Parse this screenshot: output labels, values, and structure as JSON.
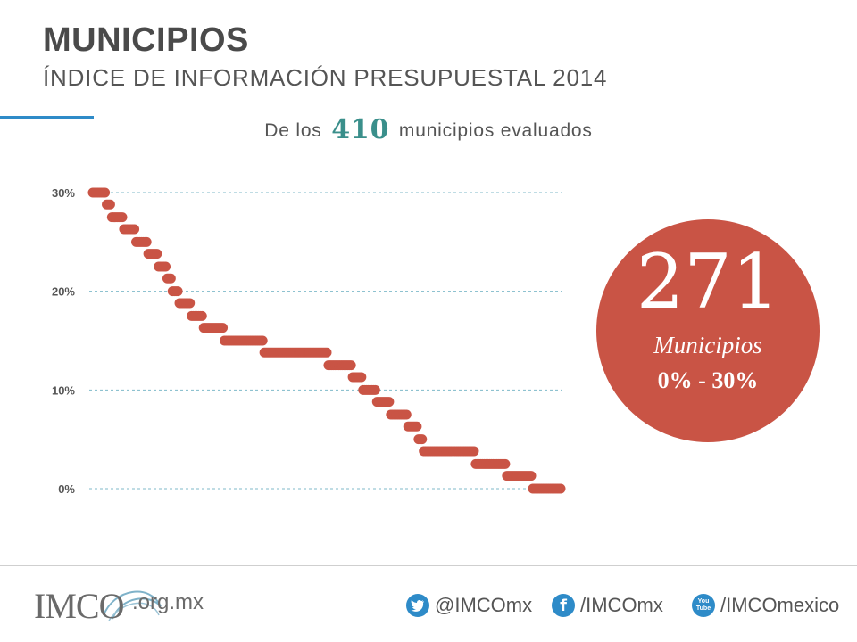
{
  "header": {
    "title": "MUNICIPIOS",
    "subtitle": "ÍNDICE DE INFORMACIÓN PRESUPUESTAL 2014"
  },
  "headline": {
    "prefix": "De los",
    "number": "410",
    "suffix": "municipios evaluados"
  },
  "highlight": {
    "number": "271",
    "label": "Municipios",
    "range": "0% - 30%"
  },
  "colors": {
    "accent_blue": "#2e8bc8",
    "dot_red": "#c95445",
    "circle_red": "#c95445",
    "teal": "#3a8f8b",
    "grid": "#7fb9c9"
  },
  "chart_data": {
    "type": "scatter",
    "title": "",
    "xlabel": "",
    "ylabel": "",
    "ylim": [
      0,
      30
    ],
    "y_ticks": [
      "0%",
      "10%",
      "20%",
      "30%"
    ],
    "grid": true,
    "n_points": 271,
    "series": [
      {
        "values_by_rank_segments": [
          {
            "from": 1,
            "to": 8,
            "value": 30.0
          },
          {
            "from": 9,
            "to": 11,
            "value": 28.8
          },
          {
            "from": 12,
            "to": 18,
            "value": 27.5
          },
          {
            "from": 19,
            "to": 25,
            "value": 26.3
          },
          {
            "from": 26,
            "to": 32,
            "value": 25.0
          },
          {
            "from": 33,
            "to": 38,
            "value": 23.8
          },
          {
            "from": 39,
            "to": 43,
            "value": 22.5
          },
          {
            "from": 44,
            "to": 46,
            "value": 21.3
          },
          {
            "from": 47,
            "to": 50,
            "value": 20.0
          },
          {
            "from": 51,
            "to": 57,
            "value": 18.8
          },
          {
            "from": 58,
            "to": 64,
            "value": 17.5
          },
          {
            "from": 65,
            "to": 76,
            "value": 16.3
          },
          {
            "from": 77,
            "to": 99,
            "value": 15.0
          },
          {
            "from": 100,
            "to": 136,
            "value": 13.8
          },
          {
            "from": 137,
            "to": 150,
            "value": 12.5
          },
          {
            "from": 151,
            "to": 156,
            "value": 11.3
          },
          {
            "from": 157,
            "to": 164,
            "value": 10.0
          },
          {
            "from": 165,
            "to": 172,
            "value": 8.8
          },
          {
            "from": 173,
            "to": 182,
            "value": 7.5
          },
          {
            "from": 183,
            "to": 188,
            "value": 6.3
          },
          {
            "from": 189,
            "to": 191,
            "value": 5.0
          },
          {
            "from": 192,
            "to": 221,
            "value": 3.8
          },
          {
            "from": 222,
            "to": 239,
            "value": 2.5
          },
          {
            "from": 240,
            "to": 254,
            "value": 1.3
          },
          {
            "from": 255,
            "to": 271,
            "value": 0.0
          }
        ]
      }
    ]
  },
  "footer": {
    "logo": "IMCO",
    "domain": ".org.mx",
    "twitter": "@IMCOmx",
    "facebook": "/IMCOmx",
    "youtube": "/IMCOmexico",
    "youtube_badge": "You Tube"
  }
}
